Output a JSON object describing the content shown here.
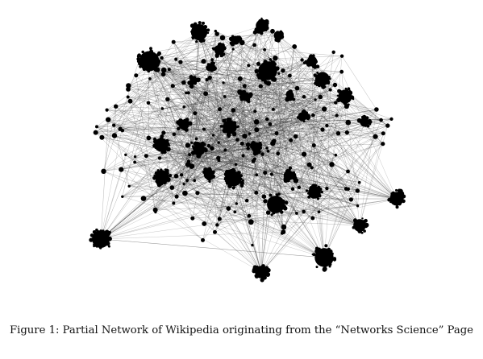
{
  "figure": {
    "caption": "Figure 1: Partial Network of Wikipedia originating from the “Networks Science” Page",
    "colors": {
      "node": "#000000",
      "edge": "#333333",
      "background": "#ffffff"
    }
  }
}
